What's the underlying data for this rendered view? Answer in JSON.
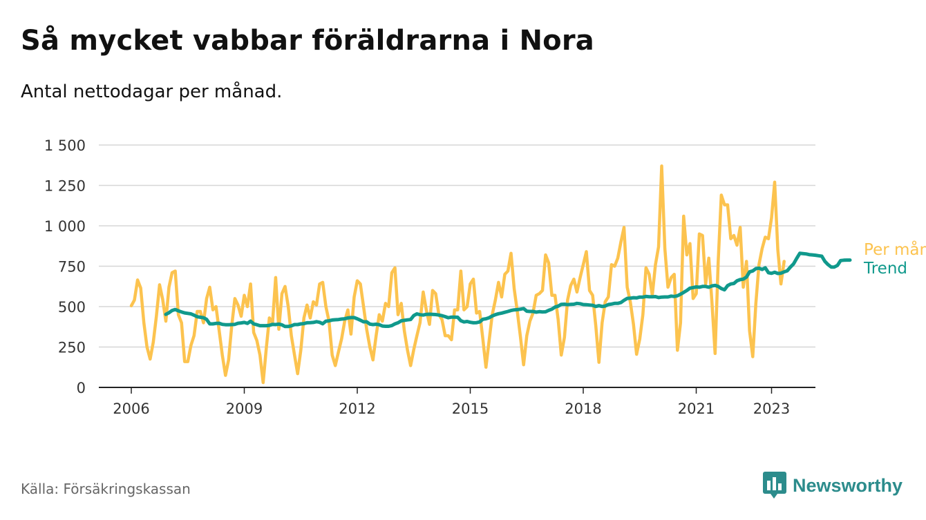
{
  "title": "Så mycket vabbar föräldrarna i Nora",
  "subtitle": "Antal nettodagar per månad.",
  "source": "Källa: Försäkringskassan",
  "brand": {
    "name": "Newsworthy",
    "icon": "newsworthy-logo-icon"
  },
  "colors": {
    "monthly": "#fcc34f",
    "trend": "#10998c",
    "grid": "#d6d6d6",
    "axis": "#222222",
    "brand": "#2c8c8c"
  },
  "chart_data": {
    "type": "line",
    "x_start": "2006-01",
    "x_ticks": [
      "2006",
      "2009",
      "2012",
      "2015",
      "2018",
      "2021",
      "2023"
    ],
    "y_ticks": [
      "0",
      "250",
      "500",
      "750",
      "1 000",
      "1 250",
      "1 500"
    ],
    "ylim": [
      0,
      1500
    ],
    "grid": true,
    "legend": "end-labels",
    "series": [
      {
        "name": "Per månad",
        "values": [
          505,
          540,
          665,
          615,
          400,
          250,
          175,
          280,
          440,
          635,
          545,
          410,
          620,
          710,
          720,
          450,
          400,
          160,
          160,
          260,
          320,
          470,
          470,
          400,
          550,
          620,
          480,
          500,
          350,
          200,
          75,
          170,
          380,
          550,
          510,
          440,
          570,
          500,
          640,
          340,
          290,
          200,
          30,
          240,
          430,
          400,
          680,
          360,
          580,
          625,
          500,
          320,
          200,
          85,
          230,
          430,
          510,
          430,
          530,
          510,
          640,
          650,
          500,
          410,
          200,
          135,
          220,
          300,
          410,
          480,
          330,
          560,
          660,
          640,
          500,
          360,
          250,
          170,
          320,
          450,
          410,
          520,
          500,
          710,
          740,
          450,
          520,
          350,
          230,
          135,
          235,
          320,
          400,
          590,
          480,
          390,
          600,
          580,
          450,
          420,
          320,
          320,
          295,
          480,
          480,
          720,
          480,
          500,
          640,
          670,
          460,
          470,
          300,
          125,
          290,
          450,
          540,
          650,
          560,
          700,
          720,
          830,
          610,
          470,
          310,
          140,
          320,
          410,
          460,
          570,
          580,
          600,
          820,
          770,
          570,
          570,
          420,
          200,
          310,
          540,
          630,
          670,
          590,
          680,
          760,
          840,
          600,
          570,
          380,
          155,
          400,
          530,
          560,
          760,
          750,
          800,
          900,
          990,
          620,
          530,
          390,
          205,
          300,
          450,
          740,
          700,
          570,
          760,
          870,
          1370,
          860,
          620,
          680,
          700,
          230,
          400,
          1060,
          820,
          890,
          550,
          580,
          950,
          940,
          640,
          800,
          530,
          210,
          780,
          1190,
          1130,
          1130,
          920,
          940,
          880,
          990,
          620,
          780,
          350,
          190,
          520,
          760,
          860,
          930,
          920,
          1050,
          1270,
          850,
          640,
          780
        ]
      },
      {
        "name": "Trend",
        "x_offset_months": 11,
        "values": [
          452,
          462,
          476,
          482,
          474,
          467,
          461,
          458,
          455,
          447,
          437,
          434,
          431,
          421,
          393,
          393,
          396,
          397,
          390,
          388,
          388,
          389,
          390,
          397,
          399,
          402,
          396,
          410,
          393,
          388,
          382,
          382,
          382,
          384,
          390,
          389,
          392,
          387,
          377,
          377,
          381,
          389,
          389,
          393,
          395,
          400,
          401,
          402,
          407,
          403,
          394,
          410,
          412,
          417,
          419,
          420,
          423,
          425,
          430,
          432,
          432,
          425,
          416,
          406,
          406,
          392,
          389,
          391,
          388,
          380,
          378,
          378,
          383,
          393,
          400,
          412,
          415,
          418,
          420,
          445,
          455,
          450,
          448,
          452,
          453,
          452,
          451,
          448,
          444,
          438,
          431,
          435,
          435,
          434,
          413,
          405,
          408,
          403,
          400,
          401,
          405,
          422,
          425,
          431,
          442,
          450,
          456,
          460,
          465,
          470,
          476,
          480,
          481,
          484,
          488,
          472,
          470,
          470,
          466,
          469,
          467,
          468,
          477,
          484,
          497,
          503,
          514,
          515,
          512,
          514,
          515,
          520,
          518,
          513,
          512,
          510,
          508,
          501,
          506,
          501,
          504,
          513,
          516,
          520,
          520,
          525,
          539,
          551,
          552,
          555,
          554,
          559,
          559,
          563,
          561,
          561,
          562,
          556,
          559,
          560,
          560,
          565,
          563,
          567,
          577,
          588,
          600,
          614,
          618,
          622,
          620,
          625,
          625,
          620,
          628,
          631,
          625,
          612,
          604,
          630,
          640,
          643,
          660,
          667,
          670,
          683,
          715,
          721,
          735,
          738,
          730,
          740,
          710,
          706,
          713,
          705,
          707,
          715,
          722,
          745,
          764,
          798,
          830,
          828,
          826,
          822,
          820,
          818,
          815,
          812,
          780,
          760,
          745,
          745,
          755,
          785,
          787,
          788,
          788
        ]
      }
    ]
  }
}
